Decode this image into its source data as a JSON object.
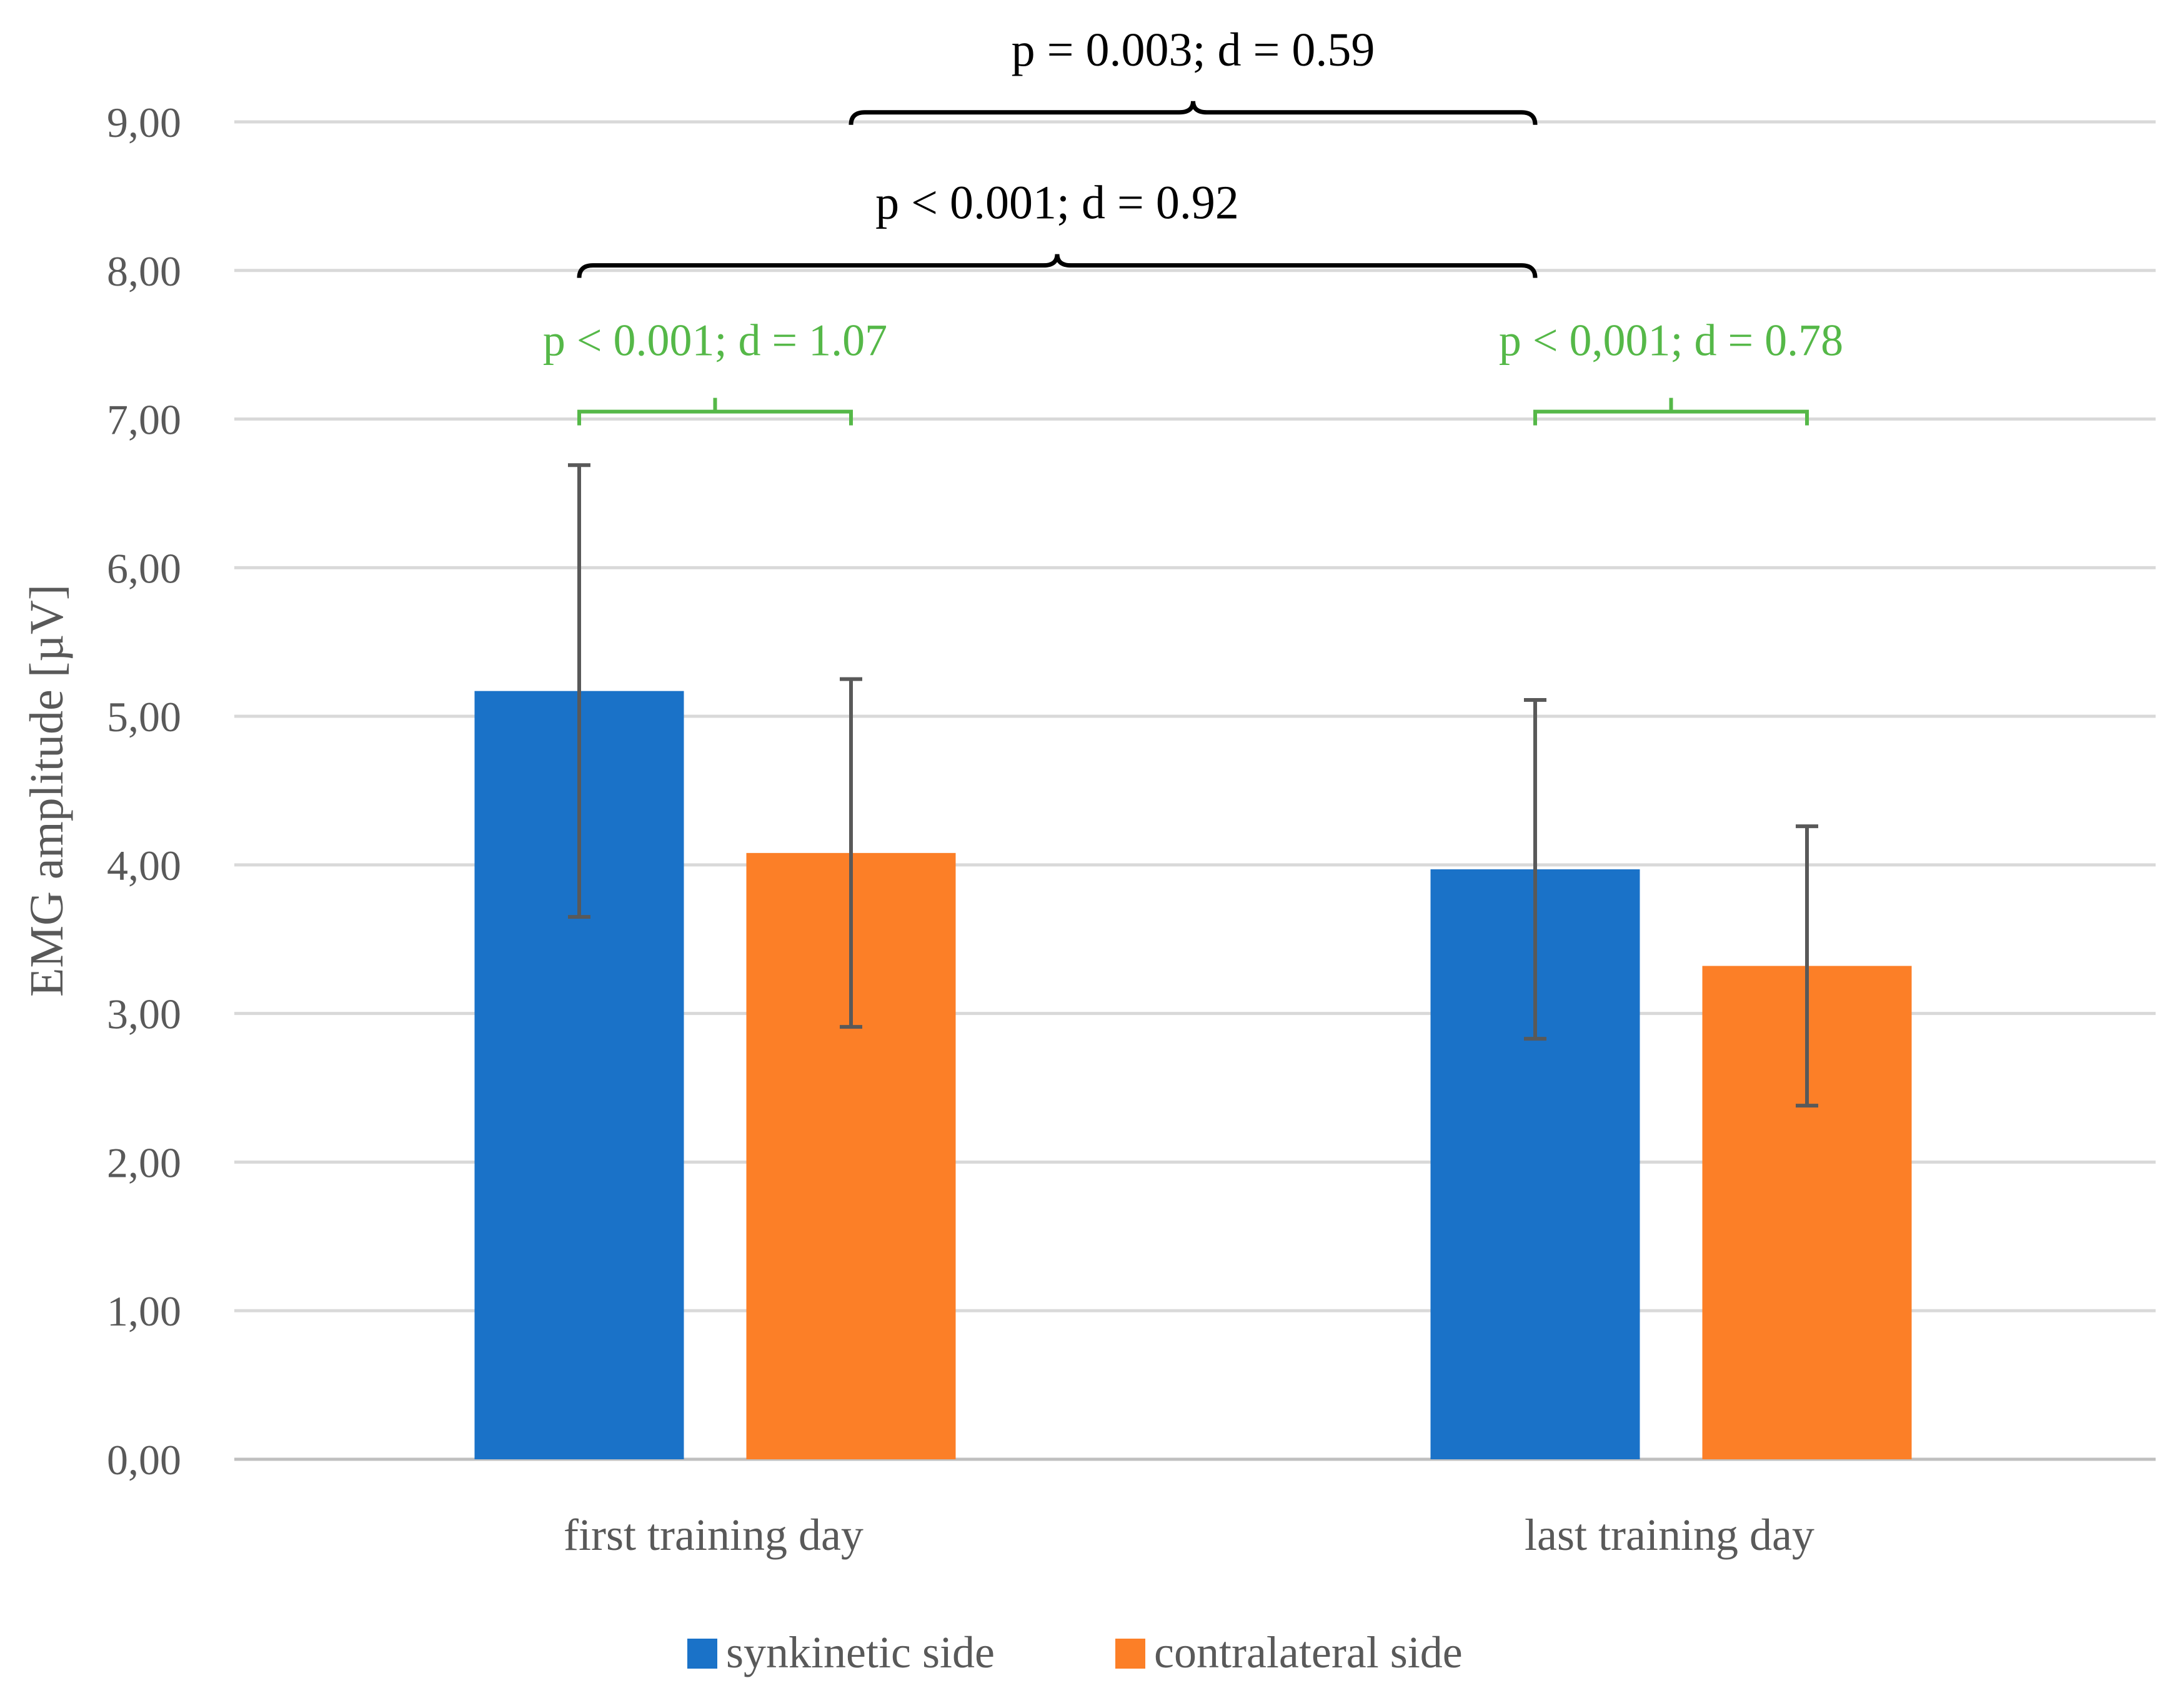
{
  "chart_data": {
    "type": "bar",
    "title": "",
    "xlabel": "",
    "ylabel": "EMG amplitude [µV]",
    "ylim": [
      0,
      9
    ],
    "ytick_values": [
      0,
      1,
      2,
      3,
      4,
      5,
      6,
      7,
      8,
      9
    ],
    "ytick_labels": [
      "0,00",
      "1,00",
      "2,00",
      "3,00",
      "4,00",
      "5,00",
      "6,00",
      "7,00",
      "8,00",
      "9,00"
    ],
    "grid": true,
    "legend_position": "bottom",
    "categories": [
      "first training day",
      "last training day"
    ],
    "series": [
      {
        "name": "synkinetic side",
        "color": "#1a72c8",
        "values": [
          5.17,
          3.97
        ],
        "error": [
          1.52,
          1.14
        ]
      },
      {
        "name": "contralateral side",
        "color": "#fc7f27",
        "values": [
          4.08,
          3.32
        ],
        "error": [
          1.17,
          0.94
        ]
      }
    ],
    "annotations": [
      {
        "text": "p = 0.003; d = 0.59",
        "color": "#000000",
        "from": {
          "category": 0,
          "series": 1
        },
        "to": {
          "category": 1,
          "series": 0
        },
        "level": 8.98,
        "style": "curly"
      },
      {
        "text": "p < 0.001; d = 0.92",
        "color": "#000000",
        "from": {
          "category": 0,
          "series": 0
        },
        "to": {
          "category": 1,
          "series": 0
        },
        "level": 7.95,
        "style": "curly"
      },
      {
        "text": "p < 0.001; d = 1.07",
        "color": "#55b848",
        "from": {
          "category": 0,
          "series": 0
        },
        "to": {
          "category": 0,
          "series": 1
        },
        "level": 7.05,
        "style": "square"
      },
      {
        "text": "p < 0,001; d = 0.78",
        "color": "#55b848",
        "from": {
          "category": 1,
          "series": 0
        },
        "to": {
          "category": 1,
          "series": 1
        },
        "level": 7.05,
        "style": "square"
      }
    ]
  }
}
